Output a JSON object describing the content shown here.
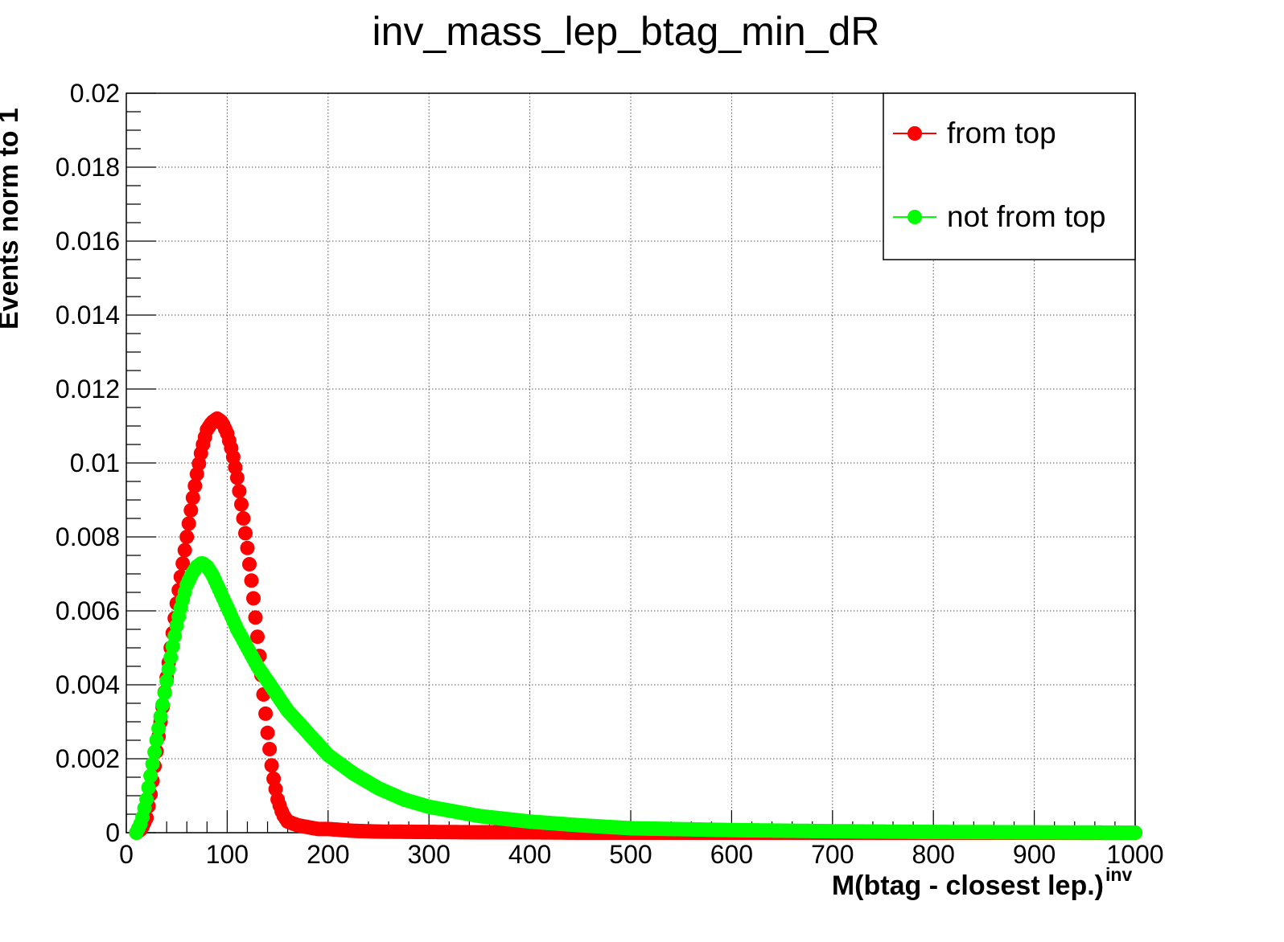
{
  "chart_data": {
    "type": "scatter",
    "title": "inv_mass_lep_btag_min_dR",
    "xlabel": "M(btag - closest lep.)",
    "xlabel_superscript": "inv",
    "ylabel": "Events norm to 1",
    "xlim": [
      0,
      1000
    ],
    "ylim": [
      0,
      0.02
    ],
    "x_ticks": [
      "0",
      "100",
      "200",
      "300",
      "400",
      "500",
      "600",
      "700",
      "800",
      "900",
      "1000"
    ],
    "y_ticks": [
      "0",
      "0.002",
      "0.004",
      "0.006",
      "0.008",
      "0.01",
      "0.012",
      "0.014",
      "0.016",
      "0.018",
      "0.02"
    ],
    "grid": true,
    "legend_position": "top-right",
    "series": [
      {
        "name": "from top",
        "color": "#ff0000",
        "x": [
          10,
          15,
          20,
          25,
          30,
          35,
          40,
          45,
          50,
          55,
          60,
          65,
          70,
          75,
          80,
          85,
          90,
          95,
          100,
          105,
          110,
          115,
          120,
          125,
          130,
          135,
          140,
          145,
          150,
          155,
          160,
          170,
          180,
          190,
          200,
          225,
          250,
          300,
          350,
          400,
          450,
          500,
          600,
          700,
          800,
          900,
          1000
        ],
        "y": [
          0.0,
          0.0001,
          0.0004,
          0.0012,
          0.0022,
          0.0032,
          0.0042,
          0.0052,
          0.0062,
          0.0071,
          0.008,
          0.0089,
          0.0097,
          0.0104,
          0.0109,
          0.0111,
          0.0112,
          0.0111,
          0.0108,
          0.0103,
          0.0096,
          0.0087,
          0.0077,
          0.0066,
          0.0053,
          0.004,
          0.0027,
          0.0016,
          0.0009,
          0.0005,
          0.0003,
          0.0002,
          0.00015,
          0.0001,
          0.0001,
          5e-05,
          3e-05,
          2e-05,
          1e-05,
          1e-05,
          0.0,
          0.0,
          0.0,
          0.0,
          0.0,
          0.0,
          0.0
        ]
      },
      {
        "name": "not from top",
        "color": "#00ff00",
        "x": [
          10,
          15,
          20,
          25,
          30,
          35,
          40,
          45,
          50,
          55,
          60,
          65,
          70,
          75,
          80,
          85,
          90,
          95,
          100,
          110,
          120,
          130,
          140,
          150,
          160,
          170,
          180,
          190,
          200,
          225,
          250,
          275,
          300,
          350,
          400,
          450,
          500,
          600,
          700,
          800,
          900,
          1000
        ],
        "y": [
          0.0,
          0.0003,
          0.0009,
          0.0017,
          0.0025,
          0.0033,
          0.0041,
          0.0049,
          0.0056,
          0.0062,
          0.0067,
          0.007,
          0.0072,
          0.0073,
          0.0072,
          0.007,
          0.0067,
          0.0064,
          0.0061,
          0.0055,
          0.005,
          0.0045,
          0.0041,
          0.0037,
          0.0033,
          0.003,
          0.0027,
          0.0024,
          0.0021,
          0.0016,
          0.0012,
          0.0009,
          0.0007,
          0.00045,
          0.0003,
          0.0002,
          0.00012,
          7e-05,
          4e-05,
          2e-05,
          1e-05,
          0.0
        ]
      }
    ]
  }
}
